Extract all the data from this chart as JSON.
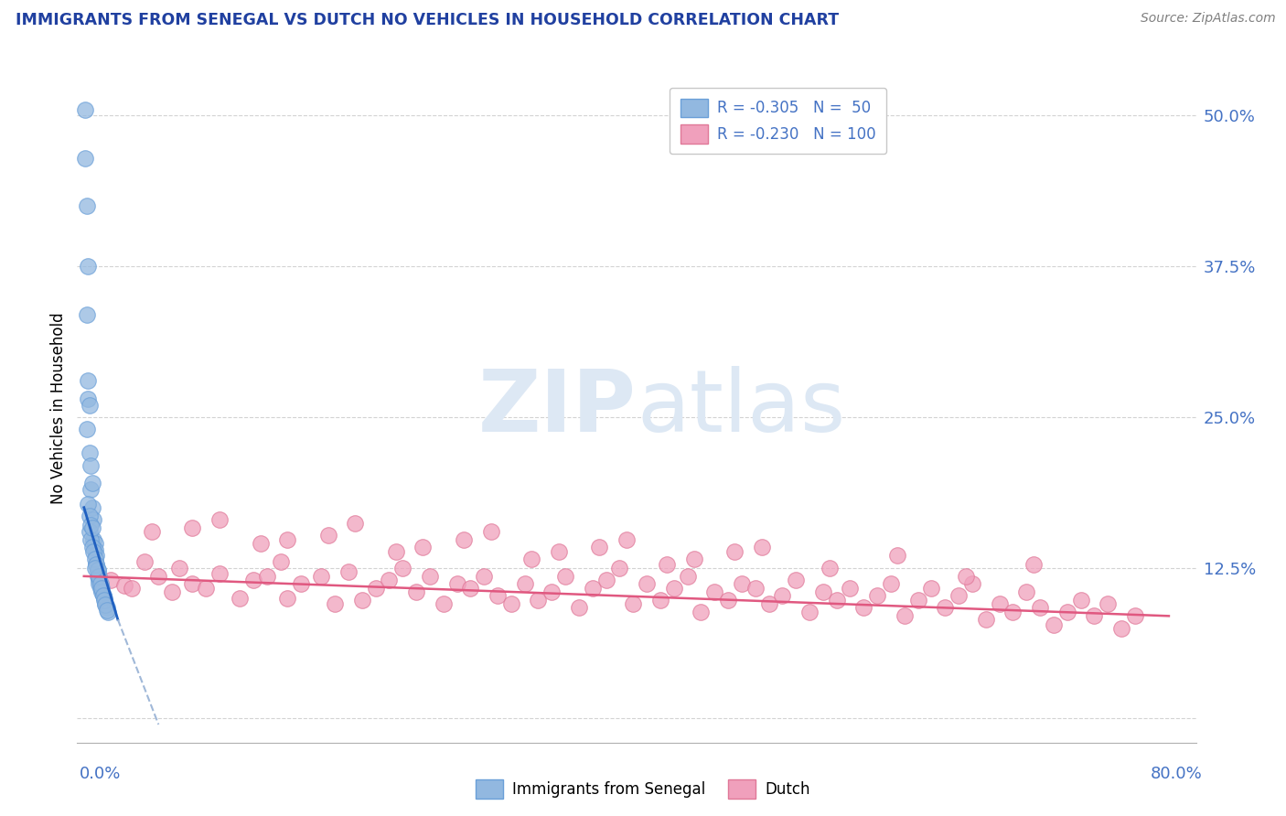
{
  "title": "IMMIGRANTS FROM SENEGAL VS DUTCH NO VEHICLES IN HOUSEHOLD CORRELATION CHART",
  "source": "Source: ZipAtlas.com",
  "ylabel": "No Vehicles in Household",
  "ytick_values": [
    0.0,
    0.125,
    0.25,
    0.375,
    0.5
  ],
  "ytick_labels": [
    "",
    "12.5%",
    "25.0%",
    "37.5%",
    "50.0%"
  ],
  "blue_color": "#92b8e0",
  "blue_edge_color": "#6a9fd8",
  "pink_color": "#f0a0bc",
  "pink_edge_color": "#e07898",
  "blue_line_color": "#2060c0",
  "pink_line_color": "#e05880",
  "blue_line_dashed_color": "#a0b8d8",
  "watermark_color": "#dde8f4",
  "tick_label_color": "#4472c4",
  "title_color": "#2040a0",
  "source_color": "#808080",
  "background_color": "#ffffff",
  "grid_color": "#c8c8c8",
  "xlim": [
    -0.005,
    0.82
  ],
  "ylim": [
    -0.02,
    0.535
  ],
  "blue_x": [
    0.001,
    0.001,
    0.002,
    0.003,
    0.002,
    0.003,
    0.004,
    0.003,
    0.004,
    0.005,
    0.005,
    0.006,
    0.006,
    0.007,
    0.007,
    0.008,
    0.008,
    0.009,
    0.009,
    0.01,
    0.01,
    0.011,
    0.011,
    0.012,
    0.013,
    0.014,
    0.015,
    0.016,
    0.017,
    0.018,
    0.004,
    0.005,
    0.006,
    0.007,
    0.008,
    0.009,
    0.01,
    0.011,
    0.012,
    0.013,
    0.014,
    0.015,
    0.016,
    0.017,
    0.003,
    0.004,
    0.005,
    0.002,
    0.006,
    0.008
  ],
  "blue_y": [
    0.505,
    0.465,
    0.425,
    0.375,
    0.335,
    0.265,
    0.26,
    0.28,
    0.22,
    0.21,
    0.19,
    0.195,
    0.175,
    0.165,
    0.148,
    0.145,
    0.14,
    0.135,
    0.128,
    0.123,
    0.118,
    0.115,
    0.112,
    0.108,
    0.105,
    0.102,
    0.1,
    0.095,
    0.092,
    0.088,
    0.155,
    0.148,
    0.142,
    0.138,
    0.132,
    0.128,
    0.123,
    0.118,
    0.112,
    0.108,
    0.102,
    0.098,
    0.094,
    0.09,
    0.178,
    0.168,
    0.16,
    0.24,
    0.158,
    0.125
  ],
  "pink_x": [
    0.02,
    0.03,
    0.045,
    0.035,
    0.055,
    0.065,
    0.08,
    0.07,
    0.09,
    0.1,
    0.115,
    0.125,
    0.135,
    0.145,
    0.15,
    0.16,
    0.175,
    0.185,
    0.195,
    0.205,
    0.215,
    0.225,
    0.235,
    0.245,
    0.255,
    0.265,
    0.275,
    0.285,
    0.295,
    0.305,
    0.315,
    0.325,
    0.335,
    0.345,
    0.355,
    0.365,
    0.375,
    0.385,
    0.395,
    0.405,
    0.415,
    0.425,
    0.435,
    0.445,
    0.455,
    0.465,
    0.475,
    0.485,
    0.495,
    0.505,
    0.515,
    0.525,
    0.535,
    0.545,
    0.555,
    0.565,
    0.575,
    0.585,
    0.595,
    0.605,
    0.615,
    0.625,
    0.635,
    0.645,
    0.655,
    0.665,
    0.675,
    0.685,
    0.695,
    0.705,
    0.715,
    0.725,
    0.735,
    0.745,
    0.755,
    0.765,
    0.775,
    0.05,
    0.1,
    0.15,
    0.2,
    0.25,
    0.3,
    0.35,
    0.4,
    0.45,
    0.5,
    0.55,
    0.6,
    0.65,
    0.7,
    0.08,
    0.13,
    0.18,
    0.23,
    0.28,
    0.33,
    0.38,
    0.43,
    0.48
  ],
  "pink_y": [
    0.115,
    0.11,
    0.13,
    0.108,
    0.118,
    0.105,
    0.112,
    0.125,
    0.108,
    0.12,
    0.1,
    0.115,
    0.118,
    0.13,
    0.1,
    0.112,
    0.118,
    0.095,
    0.122,
    0.098,
    0.108,
    0.115,
    0.125,
    0.105,
    0.118,
    0.095,
    0.112,
    0.108,
    0.118,
    0.102,
    0.095,
    0.112,
    0.098,
    0.105,
    0.118,
    0.092,
    0.108,
    0.115,
    0.125,
    0.095,
    0.112,
    0.098,
    0.108,
    0.118,
    0.088,
    0.105,
    0.098,
    0.112,
    0.108,
    0.095,
    0.102,
    0.115,
    0.088,
    0.105,
    0.098,
    0.108,
    0.092,
    0.102,
    0.112,
    0.085,
    0.098,
    0.108,
    0.092,
    0.102,
    0.112,
    0.082,
    0.095,
    0.088,
    0.105,
    0.092,
    0.078,
    0.088,
    0.098,
    0.085,
    0.095,
    0.075,
    0.085,
    0.155,
    0.165,
    0.148,
    0.162,
    0.142,
    0.155,
    0.138,
    0.148,
    0.132,
    0.142,
    0.125,
    0.135,
    0.118,
    0.128,
    0.158,
    0.145,
    0.152,
    0.138,
    0.148,
    0.132,
    0.142,
    0.128,
    0.138
  ],
  "blue_line_x0": 0.0,
  "blue_line_x1": 0.025,
  "blue_line_y0": 0.175,
  "blue_line_y1": 0.082,
  "blue_line_dash_x0": 0.025,
  "blue_line_dash_x1": 0.055,
  "blue_line_dash_y0": 0.082,
  "blue_line_dash_y1": -0.005,
  "pink_line_x0": 0.0,
  "pink_line_x1": 0.8,
  "pink_line_y0": 0.118,
  "pink_line_y1": 0.085
}
